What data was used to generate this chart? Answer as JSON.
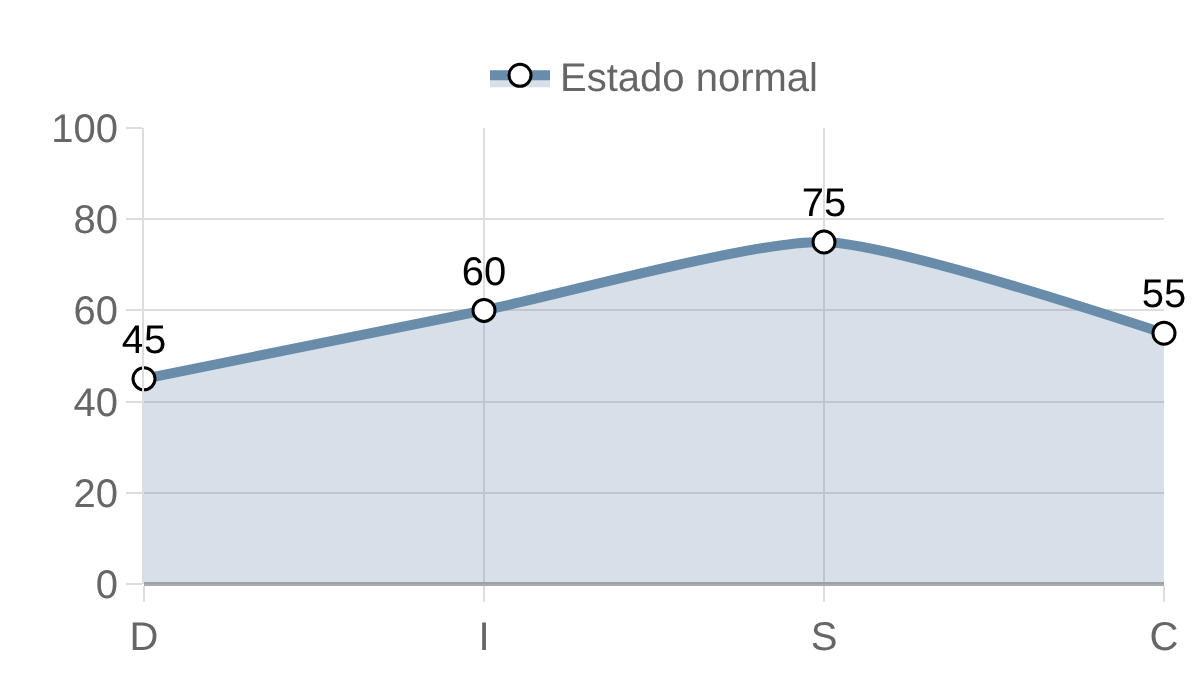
{
  "chart_data": {
    "type": "area",
    "categories": [
      "D",
      "I",
      "S",
      "C"
    ],
    "series": [
      {
        "name": "Estado normal",
        "color": "#6a8cab",
        "values": [
          45,
          60,
          75,
          55
        ]
      }
    ],
    "ylim": [
      0,
      100
    ],
    "yticks": [
      0,
      20,
      40,
      60,
      80,
      100
    ],
    "grid": true,
    "legend": "top",
    "marker": "circle",
    "data_labels": true
  }
}
